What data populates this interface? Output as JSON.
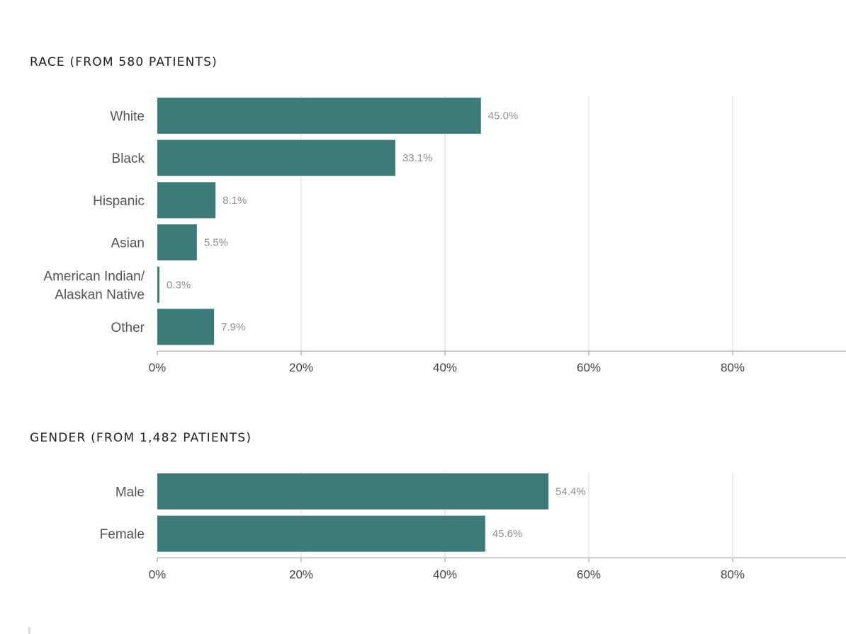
{
  "chart_data": [
    {
      "type": "bar",
      "orientation": "horizontal",
      "title": "RACE (FROM 580 PATIENTS)",
      "categories": [
        [
          "White"
        ],
        [
          "Black"
        ],
        [
          "Hispanic"
        ],
        [
          "Asian"
        ],
        [
          "American Indian/",
          "Alaskan Native"
        ],
        [
          "Other"
        ]
      ],
      "values": [
        45.0,
        33.1,
        8.1,
        5.5,
        0.3,
        7.9
      ],
      "value_labels": [
        "45.0%",
        "33.1%",
        "8.1%",
        "5.5%",
        "0.3%",
        "7.9%"
      ],
      "xlim": [
        0,
        95
      ],
      "xticks": [
        0,
        20,
        40,
        60,
        80
      ],
      "xtick_labels": [
        "0%",
        "20%",
        "40%",
        "60%",
        "80%"
      ],
      "grid": true,
      "bar_color": "#3d7b79"
    },
    {
      "type": "bar",
      "orientation": "horizontal",
      "title": "GENDER (FROM 1,482 PATIENTS)",
      "categories": [
        [
          "Male"
        ],
        [
          "Female"
        ]
      ],
      "values": [
        54.4,
        45.6
      ],
      "value_labels": [
        "54.4%",
        "45.6%"
      ],
      "xlim": [
        0,
        95
      ],
      "xticks": [
        0,
        20,
        40,
        60,
        80
      ],
      "xtick_labels": [
        "0%",
        "20%",
        "40%",
        "60%",
        "80%"
      ],
      "grid": true,
      "bar_color": "#3d7b79"
    }
  ]
}
